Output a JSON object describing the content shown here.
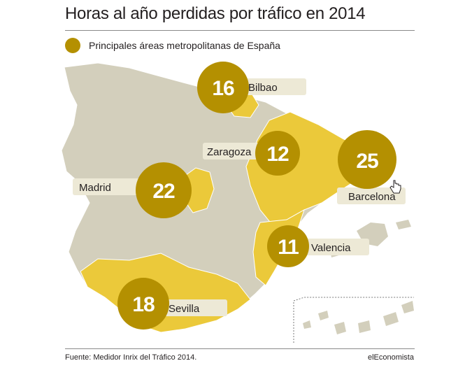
{
  "title": "Horas al año perdidas por tráfico en 2014",
  "legend": {
    "label": "Principales áreas metropolitanas de España",
    "color": "#b49001"
  },
  "colors": {
    "land": "#d3cfbc",
    "highlight": "#ebc93a",
    "bubble": "#b49001",
    "label_bg": "#ede9d6"
  },
  "cities": [
    {
      "name": "Bilbao",
      "hours": "16"
    },
    {
      "name": "Zaragoza",
      "hours": "12"
    },
    {
      "name": "Barcelona",
      "hours": "25"
    },
    {
      "name": "Madrid",
      "hours": "22"
    },
    {
      "name": "Valencia",
      "hours": "11"
    },
    {
      "name": "Sevilla",
      "hours": "18"
    }
  ],
  "footer": {
    "source": "Fuente: Medidor Inrix del Tráfico 2014.",
    "brand": "elEconomista"
  }
}
